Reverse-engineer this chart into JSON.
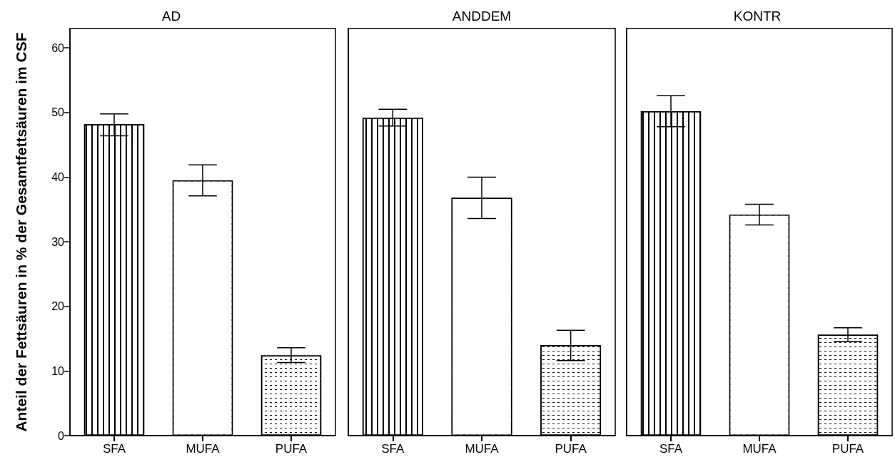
{
  "chart_data": [
    {
      "type": "bar",
      "title": "AD",
      "ylabel": "Anteil der Fettsäuren in % der Gesamtfettsäuren im CSF",
      "categories": [
        "SFA",
        "MUFA",
        "PUFA"
      ],
      "values": [
        48.2,
        39.5,
        12.4
      ],
      "errors": [
        [
          46.4,
          49.8
        ],
        [
          37.1,
          41.9
        ],
        [
          11.3,
          13.6
        ]
      ],
      "color": "#ffffff",
      "ylim": [
        0,
        63
      ],
      "yticks": [
        0,
        10,
        20,
        30,
        40,
        50,
        60
      ],
      "grid": false
    },
    {
      "type": "bar",
      "title": "ANDDEM",
      "categories": [
        "SFA",
        "MUFA",
        "PUFA"
      ],
      "values": [
        49.2,
        36.8,
        14.0
      ],
      "errors": [
        [
          47.9,
          50.5
        ],
        [
          33.6,
          40.0
        ],
        [
          11.6,
          16.3
        ]
      ],
      "color": "#ffffff",
      "ylim": [
        0,
        63
      ],
      "yticks": [
        0,
        10,
        20,
        30,
        40,
        50,
        60
      ],
      "grid": false,
      "tick_labels": "x"
    },
    {
      "type": "bar",
      "title": "KONTR",
      "categories": [
        "SFA",
        "MUFA",
        "PUFA"
      ],
      "values": [
        50.2,
        34.2,
        15.6
      ],
      "errors": [
        [
          47.8,
          52.6
        ],
        [
          32.6,
          35.8
        ],
        [
          14.6,
          16.7
        ]
      ],
      "color": "#ffffff",
      "ylim": [
        0,
        63
      ],
      "yticks": [
        0,
        10,
        20,
        30,
        40,
        50,
        60
      ],
      "grid": false,
      "tick_labels": "x"
    }
  ]
}
